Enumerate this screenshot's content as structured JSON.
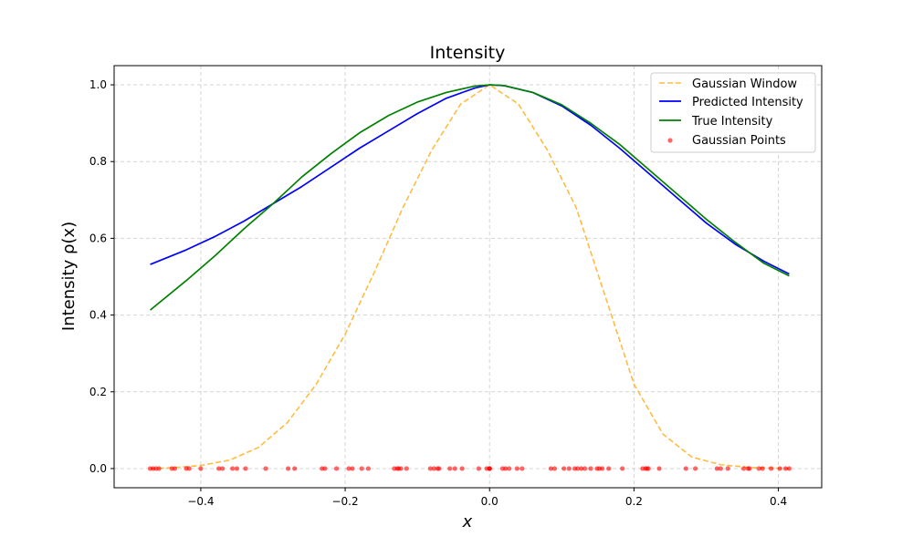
{
  "chart_data": {
    "type": "line",
    "title": "Intensity",
    "xlabel": "x",
    "ylabel": "Intensity ρ(x)",
    "xlim": [
      -0.52,
      0.46
    ],
    "ylim": [
      -0.05,
      1.05
    ],
    "xticks": [
      -0.4,
      -0.2,
      0.0,
      0.2,
      0.4
    ],
    "xtick_labels": [
      "−0.4",
      "−0.2",
      "0.0",
      "0.2",
      "0.4"
    ],
    "yticks": [
      0.0,
      0.2,
      0.4,
      0.6,
      0.8,
      1.0
    ],
    "ytick_labels": [
      "0.0",
      "0.2",
      "0.4",
      "0.6",
      "0.8",
      "1.0"
    ],
    "grid": true,
    "legend_position": "top-right",
    "colors": {
      "gaussian_window": "#FFA500",
      "predicted": "#0000FF",
      "true": "#008000",
      "points": "#FF0000"
    },
    "series": [
      {
        "name": "Gaussian Window",
        "style": "dashed",
        "x": [
          -0.47,
          -0.44,
          -0.4,
          -0.36,
          -0.32,
          -0.28,
          -0.24,
          -0.2,
          -0.16,
          -0.12,
          -0.08,
          -0.04,
          0.0,
          0.04,
          0.08,
          0.12,
          0.16,
          0.2,
          0.24,
          0.28,
          0.32,
          0.36,
          0.4,
          0.415
        ],
        "y": [
          0.0,
          0.002,
          0.008,
          0.022,
          0.055,
          0.12,
          0.22,
          0.35,
          0.51,
          0.68,
          0.83,
          0.95,
          1.0,
          0.95,
          0.83,
          0.68,
          0.45,
          0.22,
          0.09,
          0.03,
          0.01,
          0.003,
          0.001,
          0.0
        ]
      },
      {
        "name": "Predicted Intensity",
        "style": "solid",
        "x": [
          -0.47,
          -0.42,
          -0.38,
          -0.34,
          -0.3,
          -0.26,
          -0.22,
          -0.18,
          -0.14,
          -0.1,
          -0.06,
          -0.02,
          0.0,
          0.02,
          0.06,
          0.1,
          0.14,
          0.18,
          0.22,
          0.26,
          0.3,
          0.34,
          0.38,
          0.415
        ],
        "y": [
          0.532,
          0.57,
          0.605,
          0.645,
          0.69,
          0.735,
          0.785,
          0.835,
          0.88,
          0.925,
          0.965,
          0.992,
          1.0,
          0.998,
          0.98,
          0.945,
          0.895,
          0.835,
          0.77,
          0.705,
          0.64,
          0.585,
          0.54,
          0.507
        ]
      },
      {
        "name": "True Intensity",
        "style": "solid",
        "x": [
          -0.47,
          -0.42,
          -0.38,
          -0.34,
          -0.3,
          -0.26,
          -0.22,
          -0.18,
          -0.14,
          -0.1,
          -0.06,
          -0.02,
          0.0,
          0.02,
          0.06,
          0.1,
          0.14,
          0.18,
          0.22,
          0.26,
          0.3,
          0.34,
          0.38,
          0.415
        ],
        "y": [
          0.413,
          0.49,
          0.555,
          0.625,
          0.69,
          0.76,
          0.82,
          0.875,
          0.92,
          0.955,
          0.98,
          0.997,
          1.0,
          0.998,
          0.98,
          0.948,
          0.9,
          0.845,
          0.78,
          0.715,
          0.65,
          0.59,
          0.535,
          0.502
        ]
      }
    ],
    "scatter": {
      "name": "Gaussian Points",
      "y": 0.0,
      "x": [
        -0.47,
        -0.466,
        -0.462,
        -0.458,
        -0.44,
        -0.436,
        -0.42,
        -0.416,
        -0.4,
        -0.375,
        -0.37,
        -0.356,
        -0.35,
        -0.338,
        -0.31,
        -0.279,
        -0.27,
        -0.232,
        -0.228,
        -0.212,
        -0.195,
        -0.19,
        -0.177,
        -0.168,
        -0.132,
        -0.128,
        -0.126,
        -0.123,
        -0.115,
        -0.082,
        -0.077,
        -0.072,
        -0.07,
        -0.055,
        -0.048,
        -0.038,
        -0.015,
        -0.004,
        0.0,
        0.0,
        0.0,
        0.018,
        0.022,
        0.027,
        0.038,
        0.045,
        0.085,
        0.09,
        0.103,
        0.11,
        0.118,
        0.122,
        0.127,
        0.132,
        0.14,
        0.149,
        0.152,
        0.156,
        0.165,
        0.184,
        0.212,
        0.216,
        0.218,
        0.22,
        0.235,
        0.272,
        0.285,
        0.315,
        0.32,
        0.33,
        0.352,
        0.358,
        0.36,
        0.373,
        0.378,
        0.39,
        0.402,
        0.41,
        0.415
      ]
    }
  }
}
